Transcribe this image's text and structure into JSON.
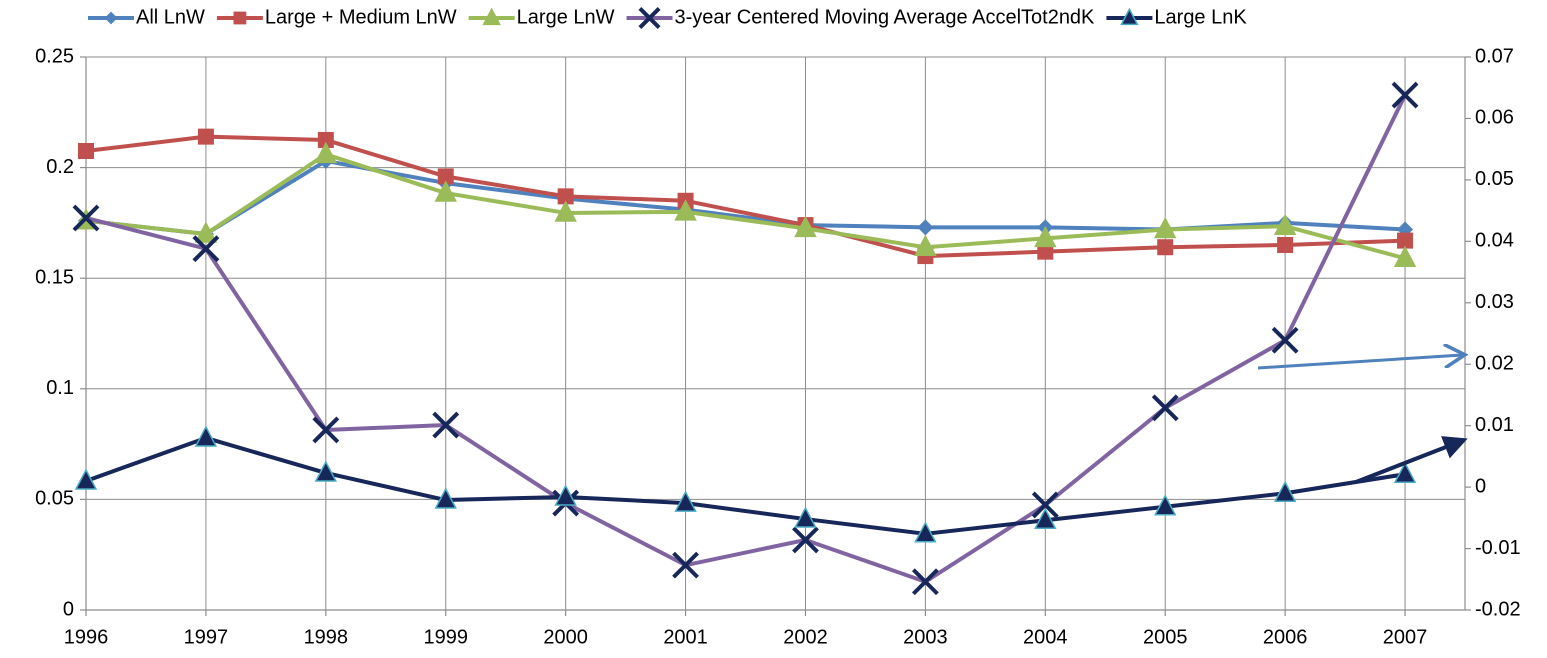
{
  "chart_data": {
    "type": "line",
    "x": [
      1996,
      1997,
      1998,
      1999,
      2000,
      2001,
      2002,
      2003,
      2004,
      2005,
      2006,
      2007
    ],
    "xlim": [
      1996,
      2007.5
    ],
    "xticks": [
      1996,
      1997,
      1998,
      1999,
      2000,
      2001,
      2002,
      2003,
      2004,
      2005,
      2006,
      2007
    ],
    "ylim": [
      0,
      0.25
    ],
    "yticks": [
      0,
      0.05,
      0.1,
      0.15,
      0.2,
      0.25
    ],
    "y2lim": [
      -0.02,
      0.07
    ],
    "y2ticks": [
      -0.02,
      -0.01,
      0,
      0.01,
      0.02,
      0.03,
      0.04,
      0.05,
      0.06,
      0.07
    ],
    "grid": true,
    "legend": "top",
    "series": [
      {
        "name": "All LnW",
        "color": "#4f81bd",
        "marker": "diamond",
        "marker_color": "#4f81bd",
        "values": [
          0.176,
          0.17,
          0.203,
          0.193,
          0.186,
          0.181,
          0.174,
          0.173,
          0.173,
          0.172,
          0.175,
          0.172
        ]
      },
      {
        "name": "Large + Medium LnW",
        "color": "#c0504d",
        "marker": "square",
        "marker_color": "#c0504d",
        "values": [
          0.2075,
          0.214,
          0.2125,
          0.196,
          0.187,
          0.185,
          0.174,
          0.16,
          0.162,
          0.164,
          0.165,
          0.167
        ]
      },
      {
        "name": "Large LnW",
        "color": "#9bbb59",
        "marker": "triangle",
        "marker_color": "#9bbb59",
        "values": [
          0.176,
          0.17,
          0.206,
          0.1885,
          0.1795,
          0.18,
          0.1725,
          0.164,
          0.168,
          0.172,
          0.1735,
          0.159
        ]
      },
      {
        "name": "3-year Centered Moving Average AccelTot2ndK",
        "color": "#8064a2",
        "marker": "x",
        "marker_color": "#17275a",
        "axis": "y2",
        "values": [
          0.0438,
          0.0388,
          0.0093,
          0.0101,
          -0.0026,
          -0.0127,
          -0.0086,
          -0.0154,
          -0.0029,
          0.0129,
          0.0239,
          0.0638
        ]
      },
      {
        "name": "Large LnK",
        "color": "#17275a",
        "marker": "triangle",
        "marker_color": "#17275a",
        "marker_stroke": "#4bacc6",
        "axis": "y2",
        "values": [
          0.001,
          0.008,
          0.0023,
          -0.0021,
          -0.0016,
          -0.0026,
          -0.0052,
          -0.0076,
          -0.0054,
          -0.0032,
          -0.001,
          0.0021
        ]
      }
    ]
  }
}
